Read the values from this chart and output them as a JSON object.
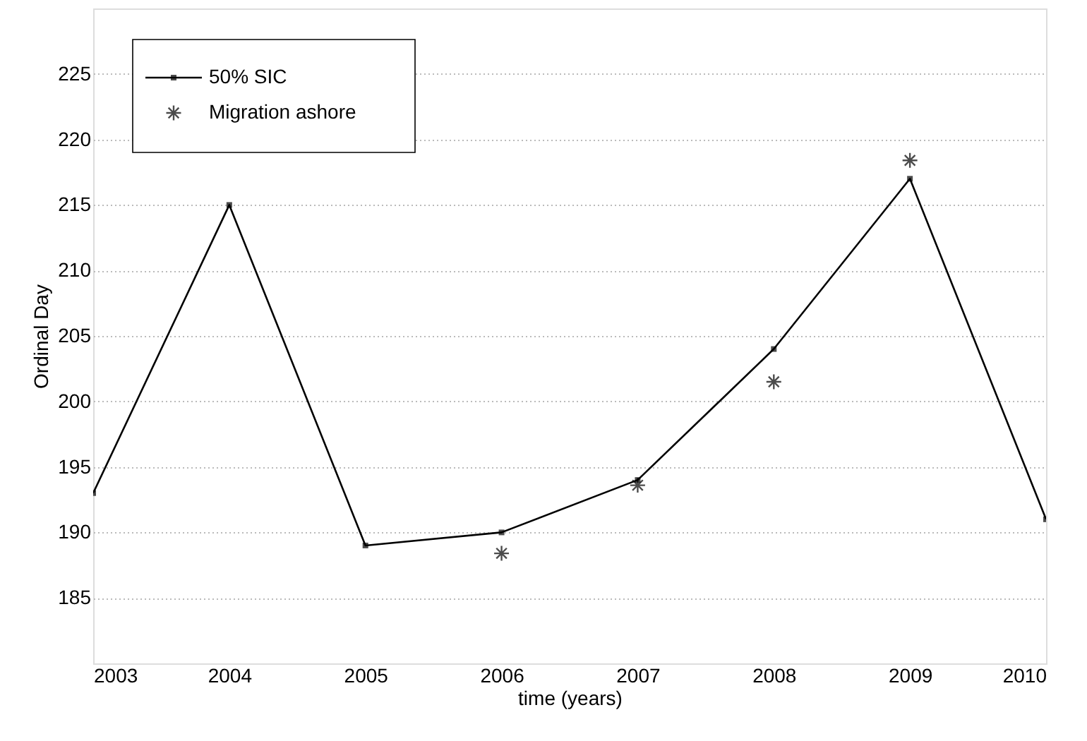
{
  "chart_data": {
    "type": "line",
    "xlabel": "time (years)",
    "ylabel": "Ordinal Day",
    "xlim": [
      2003,
      2010
    ],
    "xticks": [
      2003,
      2004,
      2005,
      2006,
      2007,
      2008,
      2009,
      2010
    ],
    "ylim": [
      180,
      230
    ],
    "yticks": [
      185,
      190,
      195,
      200,
      205,
      210,
      215,
      220,
      225
    ],
    "grid": "y",
    "legend": "top left",
    "series": [
      {
        "name": "50% SIC",
        "marker": "square",
        "color": "#000000",
        "x": [
          2003,
          2004,
          2005,
          2006,
          2007,
          2008,
          2009,
          2010
        ],
        "values": [
          193,
          215,
          189,
          190,
          194,
          204,
          217,
          191
        ]
      },
      {
        "name": "Migration ashore",
        "type": "scatter",
        "marker": "cross",
        "color": "#000000",
        "x": [
          2006,
          2007,
          2008,
          2009
        ],
        "values": [
          188.4,
          193.6,
          201.5,
          218.4
        ]
      }
    ]
  }
}
